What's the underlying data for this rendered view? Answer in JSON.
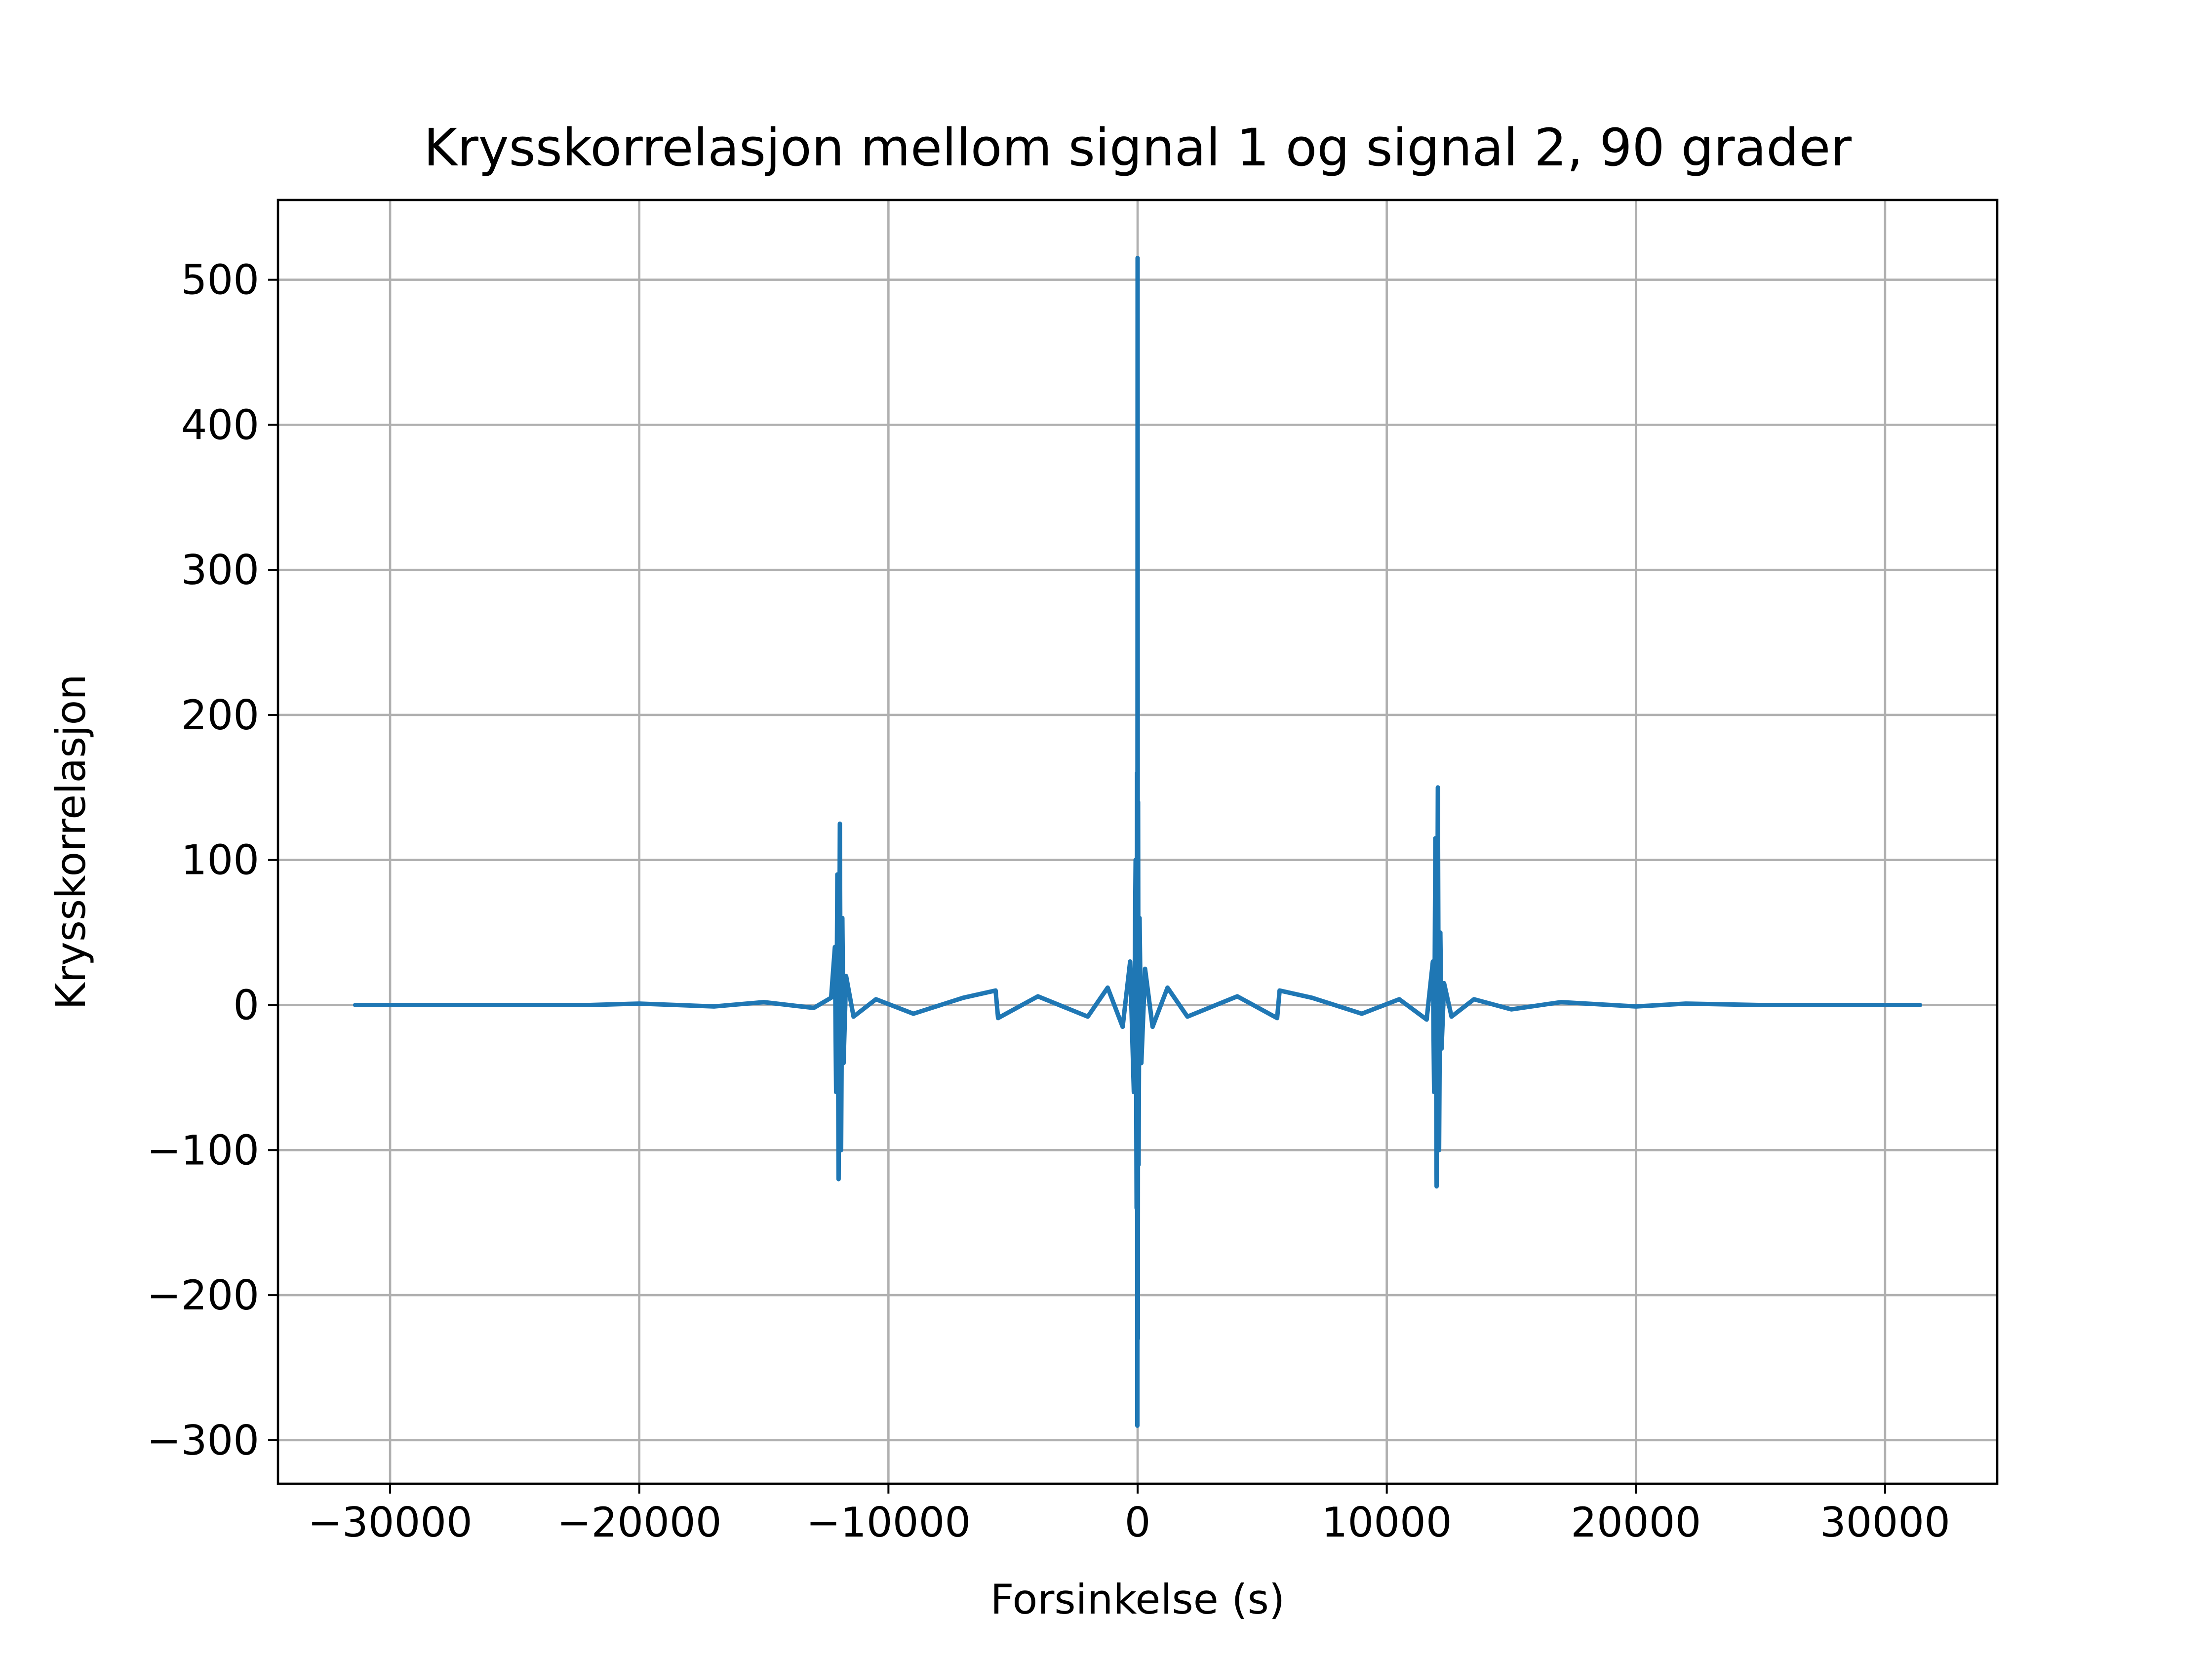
{
  "chart_data": {
    "type": "line",
    "title": "Krysskorrelasjon mellom signal 1 og signal 2, 90 grader",
    "xlabel": "Forsinkelse (s)",
    "ylabel": "Krysskorrelasjon",
    "xlim": [
      -34500,
      34500
    ],
    "ylim": [
      -330,
      555
    ],
    "xticks": [
      -30000,
      -20000,
      -10000,
      0,
      10000,
      20000,
      30000
    ],
    "xtick_labels": [
      "−30000",
      "−20000",
      "−10000",
      "0",
      "10000",
      "20000",
      "30000"
    ],
    "yticks": [
      -300,
      -200,
      -100,
      0,
      100,
      200,
      300,
      400,
      500
    ],
    "ytick_labels": [
      "−300",
      "−200",
      "−100",
      "0",
      "100",
      "200",
      "300",
      "400",
      "500"
    ],
    "grid": true,
    "color": "#1f77b4",
    "series": [
      {
        "x": [
          -31400,
          -28000,
          -25000,
          -22000,
          -20000,
          -17000,
          -15000,
          -13000,
          -12300,
          -12150,
          -12100,
          -12050,
          -12000,
          -11950,
          -11900,
          -11850,
          -11800,
          -11700,
          -11400,
          -10500,
          -9000,
          -7000,
          -5700,
          -5600,
          -4000,
          -2000,
          -1200,
          -600,
          -300,
          -150,
          -80,
          -40,
          -20,
          -10,
          0,
          10,
          20,
          40,
          80,
          150,
          300,
          600,
          1200,
          2000,
          4000,
          5600,
          5700,
          7000,
          9000,
          10500,
          11600,
          11850,
          11900,
          11950,
          12000,
          12050,
          12100,
          12150,
          12200,
          12300,
          12600,
          13500,
          15000,
          17000,
          20000,
          22000,
          25000,
          28000,
          31400
        ],
        "y": [
          0,
          0,
          0,
          0,
          1,
          -1,
          2,
          -2,
          5,
          40,
          -60,
          90,
          -120,
          125,
          -100,
          60,
          -40,
          20,
          -8,
          4,
          -6,
          5,
          10,
          -9,
          6,
          -8,
          12,
          -15,
          30,
          -60,
          100,
          -140,
          160,
          -290,
          515,
          -230,
          140,
          -110,
          60,
          -40,
          25,
          -15,
          12,
          -8,
          6,
          -9,
          10,
          5,
          -6,
          4,
          -10,
          30,
          -60,
          115,
          -125,
          150,
          -100,
          50,
          -30,
          15,
          -8,
          4,
          -3,
          2,
          -1,
          1,
          0,
          0,
          0
        ]
      }
    ]
  }
}
